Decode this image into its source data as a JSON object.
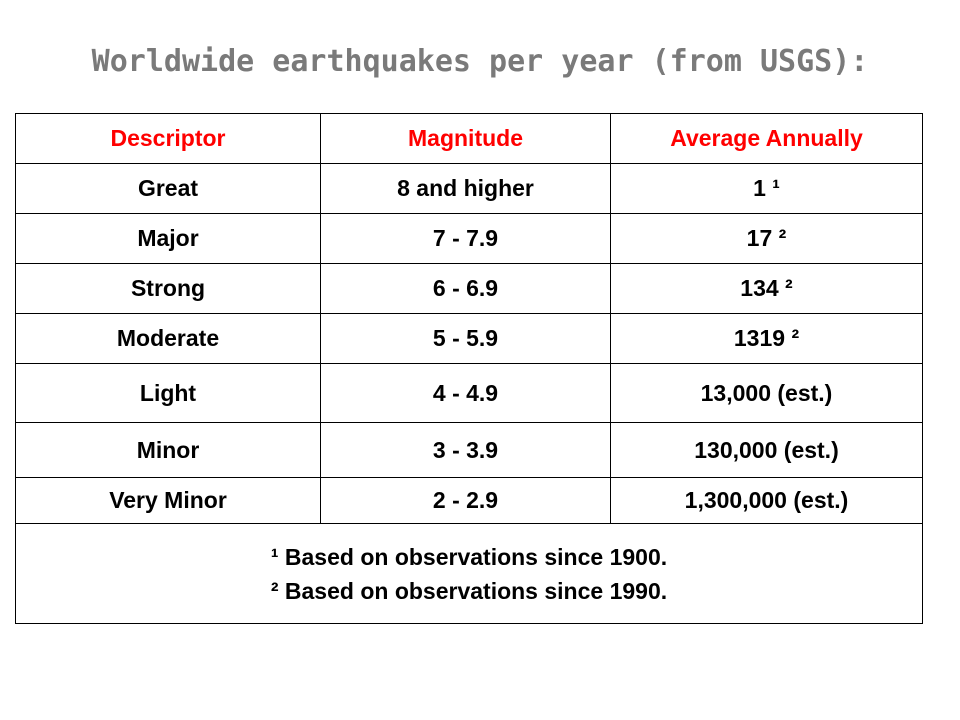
{
  "title": "Worldwide earthquakes per year (from USGS):",
  "table": {
    "headers": [
      "Descriptor",
      "Magnitude",
      "Average Annually"
    ],
    "header_color": "#ff0000",
    "rows": [
      [
        "Great",
        "8 and higher",
        "1 ¹"
      ],
      [
        "Major",
        "7 - 7.9",
        "17 ²"
      ],
      [
        "Strong",
        "6 - 6.9",
        "134 ²"
      ],
      [
        "Moderate",
        "5 - 5.9",
        "1319 ²"
      ],
      [
        "Light",
        "4 - 4.9",
        "13,000 (est.)"
      ],
      [
        "Minor",
        "3 - 3.9",
        "130,000 (est.)"
      ],
      [
        "Very Minor",
        "2 - 2.9",
        "1,300,000 (est.)"
      ]
    ],
    "notes": [
      "¹ Based on observations since 1900.",
      "² Based on observations since 1990."
    ]
  }
}
